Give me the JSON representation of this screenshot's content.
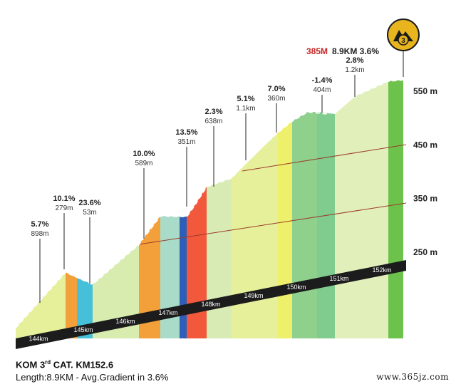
{
  "chart_data": {
    "type": "area",
    "x": [
      144,
      145,
      146,
      147,
      148,
      149,
      150,
      151,
      152
    ],
    "x_tick_labels": [
      "144km",
      "145km",
      "146km",
      "147km",
      "148km",
      "149km",
      "150km",
      "151km",
      "152km"
    ],
    "y_tick_labels": [
      "250 m",
      "350 m",
      "450 m",
      "550 m"
    ],
    "y_ticks": [
      250,
      350,
      450,
      550
    ],
    "segments": [
      {
        "gradient": "5.7%",
        "length": "898m",
        "color": "#e6ef9a"
      },
      {
        "gradient": "10.1%",
        "length": "279m",
        "color": "#f3a03b"
      },
      {
        "gradient": "23.6%",
        "length": "53m",
        "color": "#45c0d8"
      },
      {
        "gradient": "10.0%",
        "length": "589m",
        "color": "#f3a03b"
      },
      {
        "gradient": "13.5%",
        "length": "351m",
        "color": "#f2583b"
      },
      {
        "gradient": "2.3%",
        "length": "638m",
        "color": "#d9ebb5"
      },
      {
        "gradient": "5.1%",
        "length": "1.1km",
        "color": "#e6ef9a"
      },
      {
        "gradient": "7.0%",
        "length": "360m",
        "color": "#eef06b"
      },
      {
        "gradient": "-1.4%",
        "length": "404m",
        "color": "#8fd08d"
      },
      {
        "gradient": "2.8%",
        "length": "1.2km",
        "color": "#e1efbb"
      }
    ],
    "summary": {
      "altitude": "385M",
      "rest": "8.9KM  3.6%"
    },
    "badge": "3"
  },
  "footer": {
    "kom_prefix": "KOM 3",
    "kom_sup": "rd",
    "kom_suffix": " CAT.  KM152.6",
    "length_line": "Length:8.9KM - Avg.Gradient in 3.6%"
  },
  "watermark": "www.365jz.com"
}
